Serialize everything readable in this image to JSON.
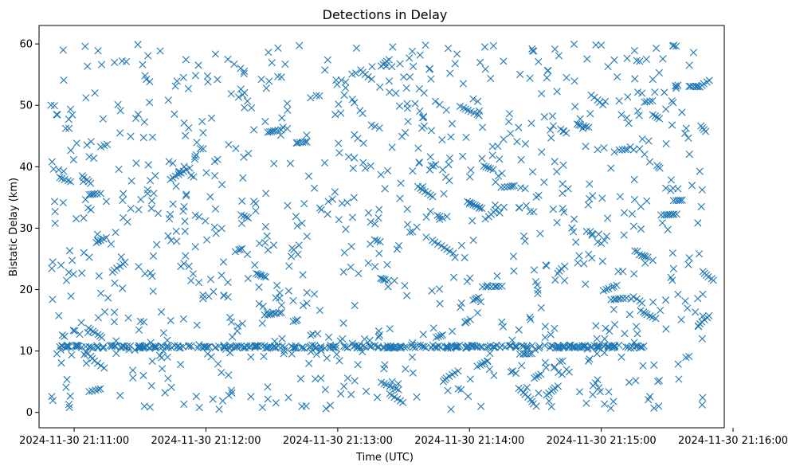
{
  "colors": {
    "marker": "#1f77b4",
    "axis": "#000000",
    "background": "#ffffff"
  },
  "chart_data": {
    "type": "scatter",
    "title": "Detections in Delay",
    "xlabel": "Time (UTC)",
    "ylabel": "Bistatic Delay (km)",
    "marker": "x",
    "grid": false,
    "legend": "none",
    "x_is_time": true,
    "xlim": [
      "2024-11-30 21:10:44",
      "2024-11-30 21:15:56"
    ],
    "ylim": [
      -2.5,
      63
    ],
    "x_ticks": [
      "2024-11-30 21:11:00",
      "2024-11-30 21:12:00",
      "2024-11-30 21:13:00",
      "2024-11-30 21:14:00",
      "2024-11-30 21:15:00",
      "2024-11-30 21:16:00"
    ],
    "y_ticks": [
      0,
      10,
      20,
      30,
      40,
      50,
      60
    ],
    "x_tick_labels": [
      "2024-11-30 21:11:00",
      "2024-11-30 21:12:00",
      "2024-11-30 21:13:00",
      "2024-11-30 21:14:00",
      "2024-11-30 21:15:00",
      "2024-11-30 21:16:00"
    ],
    "y_tick_labels": [
      "0",
      "10",
      "20",
      "30",
      "40",
      "50",
      "60"
    ],
    "series": [
      {
        "time_range": [
          "2024-11-30 21:10:49",
          "2024-11-30 21:15:48"
        ],
        "delay_range": [
          0.5,
          60
        ],
        "approx_count": 1400,
        "note_points": [
          [
            "2024-11-30 21:10:52",
            48.5
          ],
          [
            "2024-11-30 21:10:53",
            39.5
          ],
          [
            "2024-11-30 21:10:55",
            59.0
          ],
          [
            "2024-11-30 21:11:05",
            59.6
          ],
          [
            "2024-11-30 21:11:29",
            59.9
          ],
          [
            "2024-11-30 21:12:10",
            57.5
          ],
          [
            "2024-11-30 21:13:25",
            59.5
          ],
          [
            "2024-11-30 21:13:40",
            59.8
          ],
          [
            "2024-11-30 21:14:07",
            59.5
          ],
          [
            "2024-11-30 21:15:00",
            59.8
          ],
          [
            "2024-11-30 21:15:25",
            59.3
          ],
          [
            "2024-11-30 21:15:42",
            58.6
          ],
          [
            "2024-11-30 21:11:32",
            1.0
          ],
          [
            "2024-11-30 21:11:57",
            0.8
          ],
          [
            "2024-11-30 21:15:24",
            0.7
          ],
          [
            "2024-11-30 21:13:15",
            31.0
          ],
          [
            "2024-11-30 21:14:00",
            34.0
          ],
          [
            "2024-11-30 21:12:46",
            19.5
          ],
          [
            "2024-11-30 21:12:12",
            12.3
          ],
          [
            "2024-11-30 21:14:58",
            12.0
          ],
          [
            "2024-11-30 21:15:46",
            12.0
          ]
        ],
        "dense_band": {
          "delay": 10.7,
          "time_range": [
            "2024-11-30 21:10:53",
            "2024-11-30 21:15:20"
          ]
        }
      }
    ]
  }
}
